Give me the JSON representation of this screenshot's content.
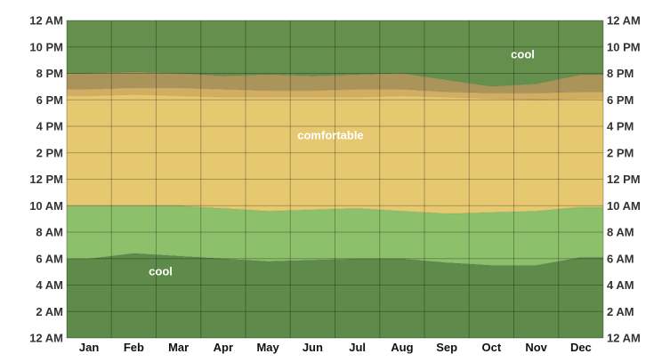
{
  "chart_data": {
    "type": "area",
    "title": "",
    "xlabel": "",
    "ylabel": "",
    "categories": [
      "Jan",
      "Feb",
      "Mar",
      "Apr",
      "May",
      "Jun",
      "Jul",
      "Aug",
      "Sep",
      "Oct",
      "Nov",
      "Dec"
    ],
    "y_ticks": [
      "12 AM",
      "2 AM",
      "4 AM",
      "6 AM",
      "8 AM",
      "10 AM",
      "12 PM",
      "2 PM",
      "4 PM",
      "6 PM",
      "8 PM",
      "10 PM",
      "12 AM"
    ],
    "y_range_hours": [
      0,
      24
    ],
    "grid": true,
    "boundaries": {
      "morning_cool_end": [
        6.0,
        6.4,
        6.2,
        6.0,
        5.8,
        5.9,
        6.0,
        6.0,
        5.7,
        5.5,
        5.5,
        6.1
      ],
      "morning_comfortable_start": [
        10.0,
        10.0,
        10.0,
        9.8,
        9.6,
        9.7,
        9.8,
        9.6,
        9.4,
        9.5,
        9.6,
        9.9
      ],
      "evening_comfortable_end": [
        18.3,
        18.4,
        18.3,
        18.2,
        18.2,
        18.2,
        18.2,
        18.3,
        18.2,
        18.1,
        18.0,
        18.1
      ],
      "evening_warm_end": [
        18.8,
        18.9,
        18.9,
        18.8,
        18.7,
        18.7,
        18.8,
        18.8,
        18.6,
        18.5,
        18.5,
        18.6
      ],
      "evening_cool_start": [
        20.0,
        20.1,
        20.0,
        19.8,
        19.9,
        19.8,
        19.9,
        20.0,
        19.5,
        19.0,
        19.2,
        19.9
      ]
    },
    "bands": [
      {
        "name": "cool",
        "from": "bottom",
        "to": "morning_cool_end",
        "color": "#5e8a4a"
      },
      {
        "name": "",
        "from": "morning_cool_end",
        "to": "morning_comfortable_start",
        "color": "#8cc06a"
      },
      {
        "name": "comfortable",
        "from": "morning_comfortable_start",
        "to": "evening_comfortable_end",
        "color": "#e6c870"
      },
      {
        "name": "",
        "from": "evening_comfortable_end",
        "to": "evening_warm_end",
        "color": "#d2ae62"
      },
      {
        "name": "",
        "from": "evening_warm_end",
        "to": "evening_cool_start",
        "color": "#ab9459"
      },
      {
        "name": "cool",
        "from": "evening_cool_start",
        "to": "top",
        "color": "#658f4c"
      }
    ],
    "annotations": [
      {
        "text": "cool",
        "month_index": 1.6,
        "hour": 5.0
      },
      {
        "text": "comfortable",
        "month_index": 5.4,
        "hour": 15.3
      },
      {
        "text": "cool",
        "month_index": 9.7,
        "hour": 21.4
      }
    ]
  }
}
